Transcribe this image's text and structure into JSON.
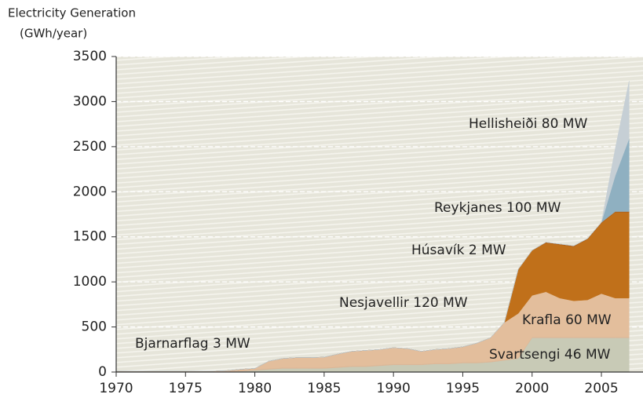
{
  "chart_data": {
    "type": "stacked_area",
    "title": "Electricity Generation",
    "y_label": "(GWh/year)",
    "x": [
      1970,
      1971,
      1972,
      1973,
      1974,
      1975,
      1976,
      1977,
      1978,
      1979,
      1980,
      1981,
      1982,
      1983,
      1984,
      1985,
      1986,
      1987,
      1988,
      1989,
      1990,
      1991,
      1992,
      1993,
      1994,
      1995,
      1996,
      1997,
      1998,
      1999,
      2000,
      2001,
      2002,
      2003,
      2004,
      2005,
      2006,
      2007
    ],
    "series": [
      {
        "name": "Svartsengi 46 MW",
        "color": "#c8cab6",
        "values": [
          0,
          0,
          0,
          0,
          0,
          0,
          0,
          0,
          5,
          10,
          20,
          30,
          40,
          40,
          40,
          40,
          50,
          60,
          60,
          70,
          80,
          80,
          80,
          90,
          90,
          100,
          100,
          110,
          130,
          150,
          380,
          380,
          380,
          380,
          380,
          380,
          380,
          380
        ]
      },
      {
        "name": "Bjarnarflag 3 MW",
        "color": "#dcb797",
        "values": [
          10,
          10,
          10,
          10,
          10,
          10,
          10,
          10,
          10,
          10,
          10,
          10,
          10,
          10,
          10,
          10,
          10,
          10,
          10,
          10,
          10,
          10,
          10,
          10,
          10,
          10,
          10,
          10,
          10,
          10,
          10,
          10,
          10,
          10,
          10,
          10,
          10,
          10
        ]
      },
      {
        "name": "Krafla 60 MW",
        "color": "#e3be9c",
        "values": [
          0,
          0,
          0,
          0,
          0,
          0,
          0,
          0,
          0,
          10,
          10,
          80,
          100,
          110,
          110,
          115,
          140,
          160,
          170,
          170,
          180,
          170,
          140,
          150,
          160,
          170,
          210,
          260,
          410,
          490,
          460,
          500,
          430,
          400,
          410,
          480,
          430,
          430
        ]
      },
      {
        "name": "Nesjavellir 120 MW",
        "color": "#c0701a",
        "values": [
          0,
          0,
          0,
          0,
          0,
          0,
          0,
          0,
          0,
          0,
          0,
          0,
          0,
          0,
          0,
          0,
          0,
          0,
          0,
          0,
          0,
          0,
          0,
          0,
          0,
          0,
          0,
          0,
          0,
          490,
          500,
          540,
          590,
          600,
          670,
          780,
          950,
          950
        ]
      },
      {
        "name": "Húsavík 2 MW",
        "color": "#b2641a",
        "values": [
          0,
          0,
          0,
          0,
          0,
          0,
          0,
          0,
          0,
          0,
          0,
          0,
          0,
          0,
          0,
          0,
          0,
          0,
          0,
          0,
          0,
          0,
          0,
          0,
          0,
          0,
          0,
          0,
          0,
          0,
          0,
          10,
          10,
          10,
          10,
          10,
          10,
          10
        ]
      },
      {
        "name": "Reykjanes 100 MW",
        "color": "#8fb0c1",
        "values": [
          0,
          0,
          0,
          0,
          0,
          0,
          0,
          0,
          0,
          0,
          0,
          0,
          0,
          0,
          0,
          0,
          0,
          0,
          0,
          0,
          0,
          0,
          0,
          0,
          0,
          0,
          0,
          0,
          0,
          0,
          0,
          0,
          0,
          0,
          0,
          0,
          400,
          810
        ]
      },
      {
        "name": "Hellisheiði 80 MW",
        "color": "#c6cfd5",
        "values": [
          0,
          0,
          0,
          0,
          0,
          0,
          0,
          0,
          0,
          0,
          0,
          0,
          0,
          0,
          0,
          0,
          0,
          0,
          0,
          0,
          0,
          0,
          0,
          0,
          0,
          0,
          0,
          0,
          0,
          0,
          0,
          0,
          0,
          0,
          0,
          0,
          300,
          640
        ]
      }
    ],
    "xlim": [
      1970,
      2008
    ],
    "xticks": [
      1970,
      1975,
      1980,
      1985,
      1990,
      1995,
      2000,
      2005
    ],
    "ylim": [
      0,
      3500
    ],
    "yticks": [
      0,
      500,
      1000,
      1500,
      2000,
      2500,
      3000,
      3500
    ],
    "grid": true
  }
}
